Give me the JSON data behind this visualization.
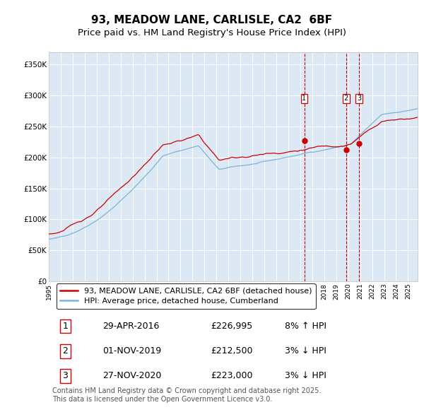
{
  "title": "93, MEADOW LANE, CARLISLE, CA2  6BF",
  "subtitle": "Price paid vs. HM Land Registry's House Price Index (HPI)",
  "ylabel_ticks": [
    "£0",
    "£50K",
    "£100K",
    "£150K",
    "£200K",
    "£250K",
    "£300K",
    "£350K"
  ],
  "ytick_values": [
    0,
    50000,
    100000,
    150000,
    200000,
    250000,
    300000,
    350000
  ],
  "ylim": [
    0,
    370000
  ],
  "xlim_start": 1995.0,
  "xlim_end": 2025.8,
  "hpi_color": "#7ab4d8",
  "price_color": "#cc0000",
  "background_plot": "#dce9f5",
  "background_fig": "#ffffff",
  "grid_color": "#ffffff",
  "sale_dates": [
    2016.33,
    2019.83,
    2020.9
  ],
  "sale_prices": [
    226995,
    212500,
    223000
  ],
  "sale_labels": [
    "1",
    "2",
    "3"
  ],
  "vline_color": "#cc0000",
  "legend_property": "93, MEADOW LANE, CARLISLE, CA2 6BF (detached house)",
  "legend_hpi": "HPI: Average price, detached house, Cumberland",
  "annotation_rows": [
    [
      "1",
      "29-APR-2016",
      "£226,995",
      "8% ↑ HPI"
    ],
    [
      "2",
      "01-NOV-2019",
      "£212,500",
      "3% ↓ HPI"
    ],
    [
      "3",
      "27-NOV-2020",
      "£223,000",
      "3% ↓ HPI"
    ]
  ],
  "footnote": "Contains HM Land Registry data © Crown copyright and database right 2025.\nThis data is licensed under the Open Government Licence v3.0.",
  "title_fontsize": 11,
  "subtitle_fontsize": 9.5,
  "tick_fontsize": 7.5,
  "legend_fontsize": 8,
  "annotation_fontsize": 9,
  "footnote_fontsize": 7
}
